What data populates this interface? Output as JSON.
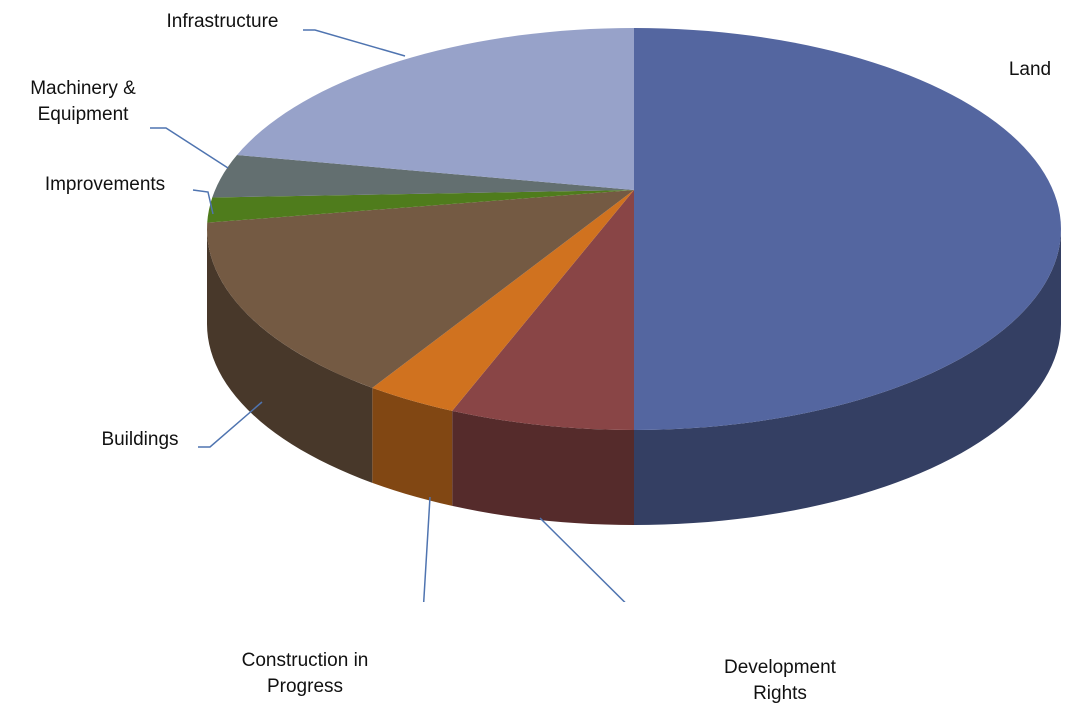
{
  "chart_data": {
    "type": "pie",
    "categories": [
      "Land",
      "Development Rights",
      "Construction in Progress",
      "Buildings",
      "Improvements",
      "Machinery & Equipment",
      "Infrastructure"
    ],
    "values": [
      50,
      7,
      3.5,
      15,
      2,
      3.5,
      19
    ],
    "colors": [
      "#5466a0",
      "#894546",
      "#d0721f",
      "#745a43",
      "#4f7c1c",
      "#636f70",
      "#97a2c9"
    ]
  }
}
